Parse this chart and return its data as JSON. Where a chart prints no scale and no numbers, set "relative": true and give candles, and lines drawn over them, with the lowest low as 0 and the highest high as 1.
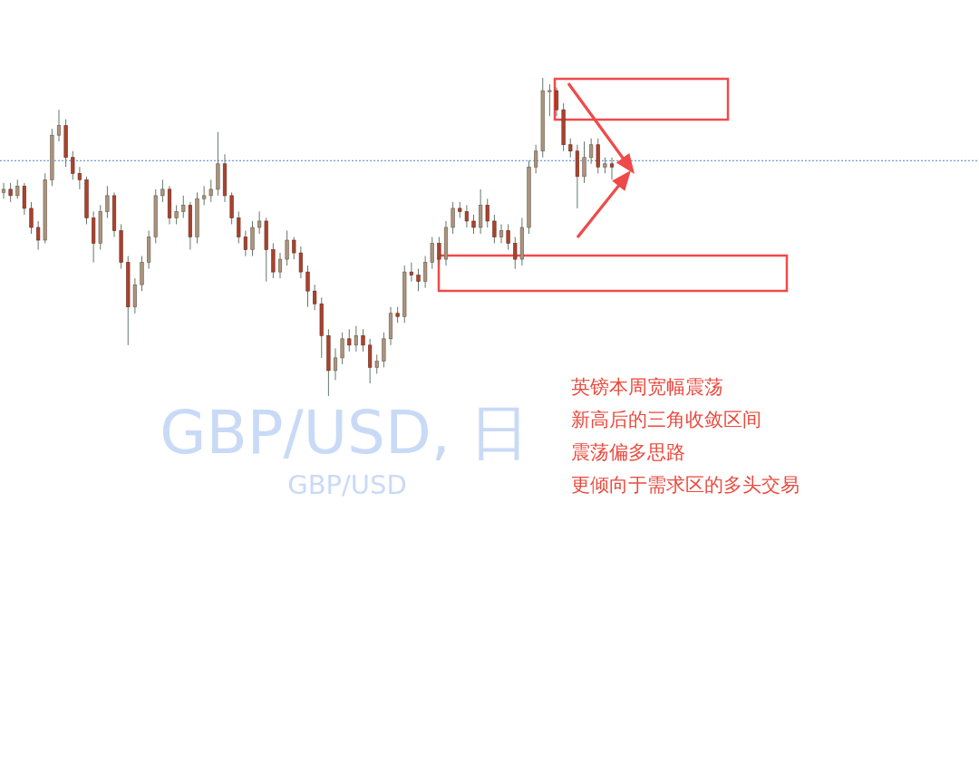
{
  "chart_data": {
    "type": "candlestick",
    "title": "GBP/USD, 日",
    "subtitle": "GBP/USD",
    "relative": true,
    "categories": [
      null,
      null,
      null,
      null,
      null,
      null,
      null,
      null,
      null,
      null,
      null,
      null,
      null,
      null,
      null,
      null,
      null,
      null,
      null,
      null,
      null,
      null,
      null,
      null,
      null,
      null,
      null,
      null,
      null,
      null,
      null,
      null,
      null,
      null,
      null,
      null,
      null,
      null,
      null,
      null,
      null,
      null,
      null,
      null,
      null,
      null,
      null,
      null,
      null,
      null,
      null,
      null,
      null,
      null,
      null,
      null,
      null,
      null,
      null,
      null,
      null,
      null,
      null,
      null,
      null,
      null,
      null,
      null,
      null,
      null,
      null,
      null,
      null,
      null,
      null,
      null,
      null,
      null,
      null,
      null,
      null,
      null,
      null,
      null,
      null,
      null,
      null,
      null,
      null
    ],
    "ohlc": [
      [
        0.64,
        0.67,
        0.62,
        0.65
      ],
      [
        0.65,
        0.67,
        0.61,
        0.63
      ],
      [
        0.63,
        0.68,
        0.62,
        0.66
      ],
      [
        0.66,
        0.67,
        0.57,
        0.59
      ],
      [
        0.59,
        0.61,
        0.51,
        0.53
      ],
      [
        0.53,
        0.55,
        0.46,
        0.49
      ],
      [
        0.49,
        0.7,
        0.48,
        0.68
      ],
      [
        0.68,
        0.84,
        0.66,
        0.82
      ],
      [
        0.82,
        0.9,
        0.8,
        0.85
      ],
      [
        0.85,
        0.87,
        0.72,
        0.75
      ],
      [
        0.75,
        0.77,
        0.68,
        0.7
      ],
      [
        0.7,
        0.72,
        0.65,
        0.68
      ],
      [
        0.68,
        0.69,
        0.54,
        0.56
      ],
      [
        0.56,
        0.58,
        0.42,
        0.48
      ],
      [
        0.48,
        0.6,
        0.46,
        0.58
      ],
      [
        0.58,
        0.66,
        0.56,
        0.63
      ],
      [
        0.63,
        0.64,
        0.5,
        0.52
      ],
      [
        0.52,
        0.54,
        0.4,
        0.42
      ],
      [
        0.42,
        0.44,
        0.16,
        0.28
      ],
      [
        0.28,
        0.37,
        0.26,
        0.35
      ],
      [
        0.35,
        0.44,
        0.33,
        0.42
      ],
      [
        0.42,
        0.52,
        0.4,
        0.5
      ],
      [
        0.5,
        0.65,
        0.48,
        0.63
      ],
      [
        0.63,
        0.68,
        0.61,
        0.65
      ],
      [
        0.65,
        0.66,
        0.54,
        0.56
      ],
      [
        0.56,
        0.6,
        0.54,
        0.58
      ],
      [
        0.58,
        0.63,
        0.56,
        0.6
      ],
      [
        0.6,
        0.61,
        0.46,
        0.5
      ],
      [
        0.5,
        0.64,
        0.48,
        0.62
      ],
      [
        0.62,
        0.66,
        0.6,
        0.63
      ],
      [
        0.63,
        0.68,
        0.61,
        0.65
      ],
      [
        0.65,
        0.83,
        0.63,
        0.73
      ],
      [
        0.73,
        0.76,
        0.61,
        0.63
      ],
      [
        0.63,
        0.64,
        0.54,
        0.56
      ],
      [
        0.56,
        0.58,
        0.48,
        0.5
      ],
      [
        0.5,
        0.52,
        0.44,
        0.46
      ],
      [
        0.46,
        0.55,
        0.44,
        0.53
      ],
      [
        0.53,
        0.58,
        0.51,
        0.55
      ],
      [
        0.55,
        0.56,
        0.36,
        0.46
      ],
      [
        0.46,
        0.48,
        0.37,
        0.39
      ],
      [
        0.39,
        0.45,
        0.37,
        0.43
      ],
      [
        0.43,
        0.52,
        0.41,
        0.49
      ],
      [
        0.49,
        0.5,
        0.43,
        0.45
      ],
      [
        0.45,
        0.47,
        0.37,
        0.39
      ],
      [
        0.39,
        0.41,
        0.28,
        0.33
      ],
      [
        0.33,
        0.35,
        0.27,
        0.29
      ],
      [
        0.29,
        0.31,
        0.12,
        0.19
      ],
      [
        0.19,
        0.21,
        0.0,
        0.08
      ],
      [
        0.08,
        0.15,
        0.05,
        0.12
      ],
      [
        0.12,
        0.2,
        0.1,
        0.18
      ],
      [
        0.18,
        0.21,
        0.14,
        0.16
      ],
      [
        0.16,
        0.22,
        0.14,
        0.19
      ],
      [
        0.19,
        0.21,
        0.14,
        0.16
      ],
      [
        0.16,
        0.18,
        0.04,
        0.09
      ],
      [
        0.09,
        0.13,
        0.07,
        0.11
      ],
      [
        0.11,
        0.2,
        0.09,
        0.18
      ],
      [
        0.18,
        0.28,
        0.16,
        0.26
      ],
      [
        0.26,
        0.28,
        0.23,
        0.25
      ],
      [
        0.25,
        0.41,
        0.23,
        0.39
      ],
      [
        0.39,
        0.42,
        0.36,
        0.38
      ],
      [
        0.38,
        0.4,
        0.33,
        0.36
      ],
      [
        0.36,
        0.44,
        0.34,
        0.42
      ],
      [
        0.42,
        0.5,
        0.4,
        0.48
      ],
      [
        0.48,
        0.5,
        0.41,
        0.43
      ],
      [
        0.43,
        0.55,
        0.41,
        0.53
      ],
      [
        0.53,
        0.61,
        0.51,
        0.59
      ],
      [
        0.59,
        0.61,
        0.56,
        0.58
      ],
      [
        0.58,
        0.6,
        0.53,
        0.55
      ],
      [
        0.55,
        0.57,
        0.51,
        0.53
      ],
      [
        0.53,
        0.65,
        0.51,
        0.6
      ],
      [
        0.6,
        0.62,
        0.53,
        0.55
      ],
      [
        0.55,
        0.57,
        0.48,
        0.5
      ],
      [
        0.5,
        0.54,
        0.48,
        0.52
      ],
      [
        0.52,
        0.54,
        0.46,
        0.48
      ],
      [
        0.48,
        0.5,
        0.4,
        0.43
      ],
      [
        0.43,
        0.56,
        0.41,
        0.53
      ],
      [
        0.53,
        0.74,
        0.51,
        0.72
      ],
      [
        0.72,
        0.79,
        0.7,
        0.77
      ],
      [
        0.77,
        1.0,
        0.75,
        0.96
      ],
      [
        0.96,
        0.98,
        0.88,
        0.96
      ],
      [
        0.96,
        0.97,
        0.88,
        0.9
      ],
      [
        0.9,
        0.92,
        0.77,
        0.79
      ],
      [
        0.79,
        0.81,
        0.75,
        0.77
      ],
      [
        0.77,
        0.79,
        0.59,
        0.69
      ],
      [
        0.69,
        0.8,
        0.67,
        0.75
      ],
      [
        0.75,
        0.81,
        0.73,
        0.79
      ],
      [
        0.79,
        0.81,
        0.7,
        0.72
      ],
      [
        0.72,
        0.75,
        0.7,
        0.73
      ],
      [
        0.73,
        0.75,
        0.68,
        0.72
      ]
    ],
    "ref_lines": [
      {
        "axis": "y",
        "value": 0.74,
        "color": "#4a7fd0",
        "line_style": "dotted"
      }
    ],
    "annotations": [
      "英镑本周宽幅震荡",
      "新高后的三角收敛区间",
      "震荡偏多思路",
      "更倾向于需求区的多头交易"
    ]
  }
}
